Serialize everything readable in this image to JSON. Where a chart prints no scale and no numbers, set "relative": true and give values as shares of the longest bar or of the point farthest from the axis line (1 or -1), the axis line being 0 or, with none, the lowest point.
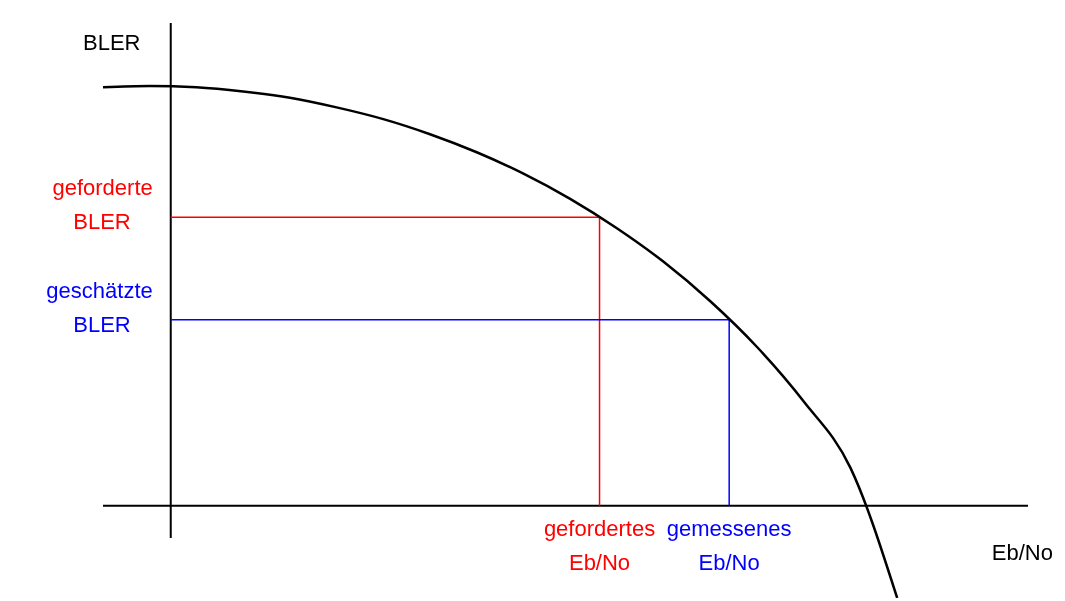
{
  "chart_data": {
    "type": "line",
    "relative": true,
    "xlabel": "Eb/No",
    "ylabel": "BLER",
    "grid": false,
    "legend": false,
    "marker": "none",
    "line_style": "solid",
    "categories": [
      null,
      null,
      null,
      null,
      null,
      null,
      null,
      null,
      null,
      null,
      null,
      null,
      null,
      null,
      null,
      null,
      null,
      null
    ],
    "series": [
      {
        "color": "#000000",
        "values": [
          0.997,
          1.0,
          0.997,
          0.987,
          0.972,
          0.949,
          0.921,
          0.885,
          0.842,
          0.791,
          0.731,
          0.661,
          0.581,
          0.487,
          0.378,
          0.248,
          0.09,
          -0.22
        ]
      }
    ],
    "ref_lines": [
      {
        "axis": "y",
        "value": 0.687,
        "label": "geforderte BLER",
        "color": "#ff0000"
      },
      {
        "axis": "y",
        "value": 0.443,
        "label": "geschätzte BLER",
        "color": "#0000ff"
      }
    ],
    "annotations": [
      "gefordertes Eb/No",
      "gemessenes Eb/No"
    ]
  }
}
